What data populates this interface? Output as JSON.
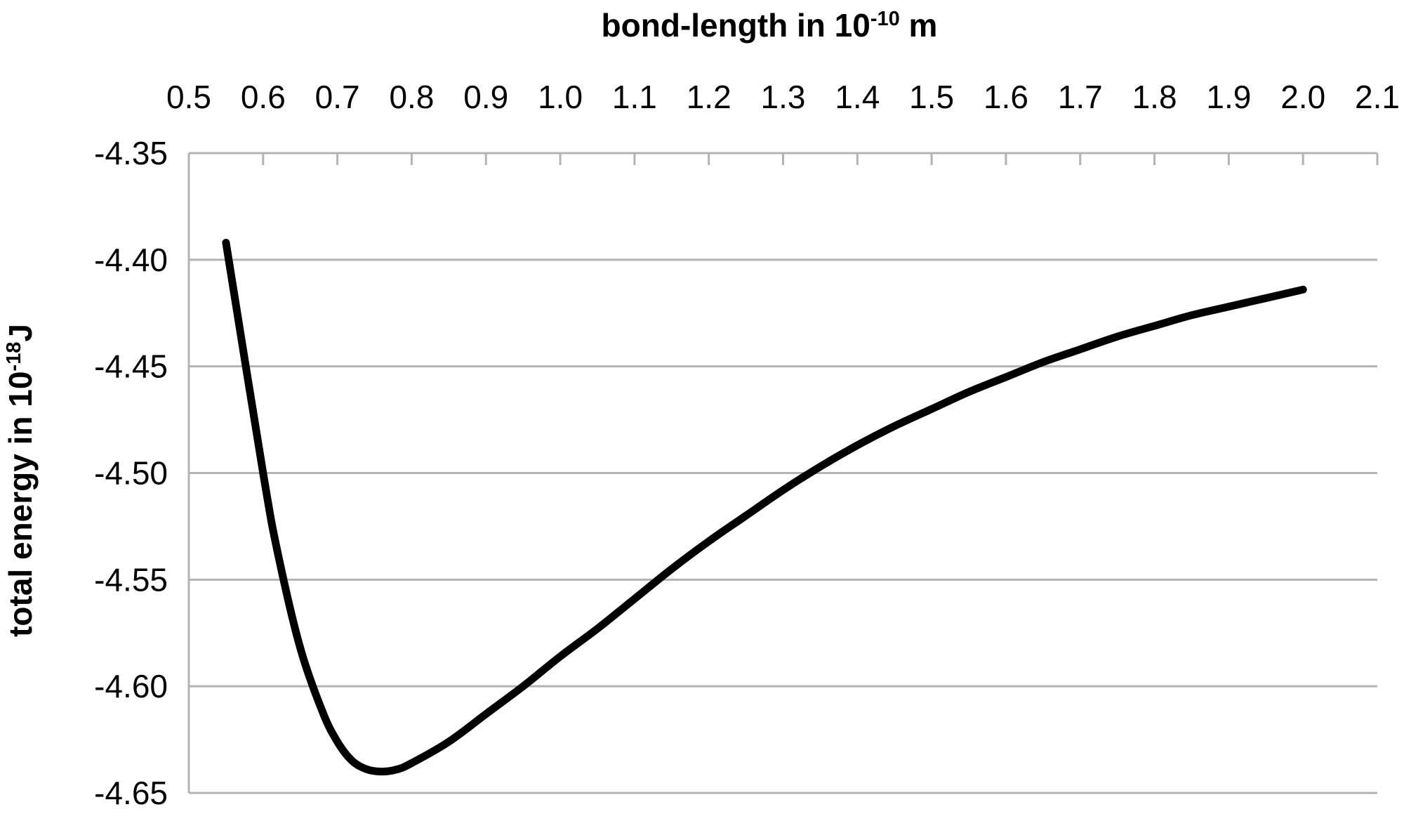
{
  "chart_data": {
    "type": "line",
    "xlabel": {
      "prefix": "bond-length in 10",
      "superscript": "-10",
      "suffix": " m"
    },
    "ylabel": {
      "prefix": "total energy in 10",
      "superscript": "-18",
      "suffix": "J"
    },
    "xlim": [
      0.5,
      2.1
    ],
    "ylim": [
      -4.65,
      -4.35
    ],
    "x_ticks": [
      0.5,
      0.6,
      0.7,
      0.8,
      0.9,
      1.0,
      1.1,
      1.2,
      1.3,
      1.4,
      1.5,
      1.6,
      1.7,
      1.8,
      1.9,
      2.0,
      2.1
    ],
    "x_tick_labels": [
      "0.5",
      "0.6",
      "0.7",
      "0.8",
      "0.9",
      "1.0",
      "1.1",
      "1.2",
      "1.3",
      "1.4",
      "1.5",
      "1.6",
      "1.7",
      "1.8",
      "1.9",
      "2.0",
      "2.1"
    ],
    "y_ticks": [
      -4.35,
      -4.4,
      -4.45,
      -4.5,
      -4.55,
      -4.6,
      -4.65
    ],
    "y_tick_labels": [
      "-4.35",
      "-4.40",
      "-4.45",
      "-4.50",
      "-4.55",
      "-4.60",
      "-4.65"
    ],
    "x_axis_position": "top",
    "grid": {
      "horizontal": true,
      "vertical": false
    },
    "line_color": "#000000",
    "grid_color": "#b3b3b3",
    "series": [
      {
        "x": [
          0.55,
          0.6,
          0.62,
          0.65,
          0.68,
          0.7,
          0.72,
          0.74,
          0.76,
          0.78,
          0.8,
          0.85,
          0.9,
          0.95,
          1.0,
          1.05,
          1.1,
          1.15,
          1.2,
          1.25,
          1.3,
          1.35,
          1.4,
          1.45,
          1.5,
          1.55,
          1.6,
          1.65,
          1.7,
          1.75,
          1.8,
          1.85,
          1.9,
          1.95,
          2.0
        ],
        "y": [
          -4.392,
          -4.5,
          -4.538,
          -4.582,
          -4.612,
          -4.626,
          -4.635,
          -4.639,
          -4.64,
          -4.639,
          -4.636,
          -4.626,
          -4.613,
          -4.6,
          -4.586,
          -4.573,
          -4.559,
          -4.545,
          -4.532,
          -4.52,
          -4.508,
          -4.497,
          -4.487,
          -4.478,
          -4.47,
          -4.462,
          -4.455,
          -4.448,
          -4.442,
          -4.436,
          -4.431,
          -4.426,
          -4.422,
          -4.418,
          -4.414
        ]
      }
    ]
  }
}
